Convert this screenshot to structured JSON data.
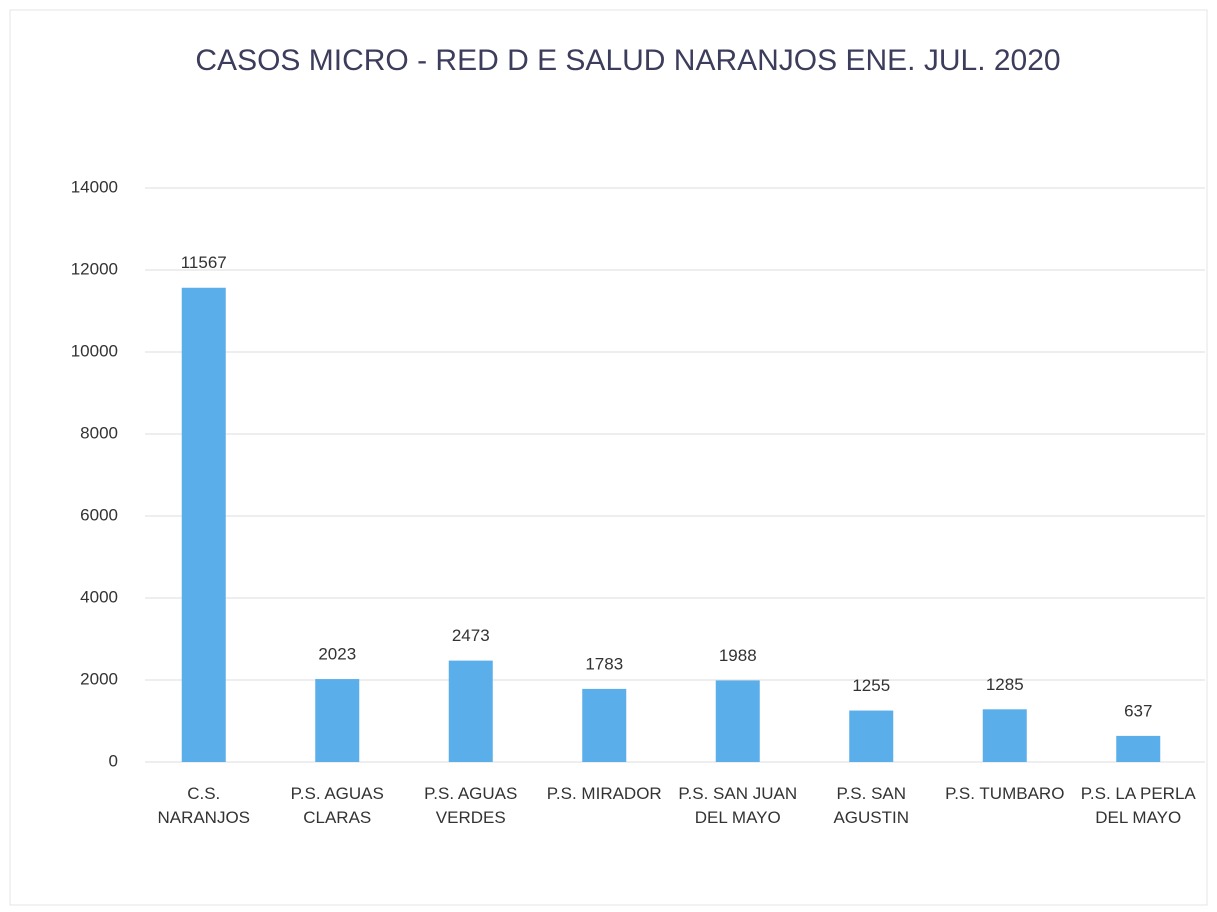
{
  "chart_data": {
    "type": "bar",
    "title": "CASOS MICRO - RED D E SALUD NARANJOS ENE. JUL. 2020",
    "categories": [
      "C.S. NARANJOS",
      "P.S. AGUAS CLARAS",
      "P.S. AGUAS VERDES",
      "P.S. MIRADOR",
      "P.S. SAN JUAN DEL MAYO",
      "P.S. SAN AGUSTIN",
      "P.S. TUMBARO",
      "P.S. LA PERLA DEL MAYO"
    ],
    "values": [
      11567,
      2023,
      2473,
      1783,
      1988,
      1255,
      1285,
      637
    ],
    "color": "#5aaeea",
    "ylim": [
      0,
      14000
    ],
    "yticks": [
      0,
      2000,
      4000,
      6000,
      8000,
      10000,
      12000,
      14000
    ],
    "grid": true
  }
}
